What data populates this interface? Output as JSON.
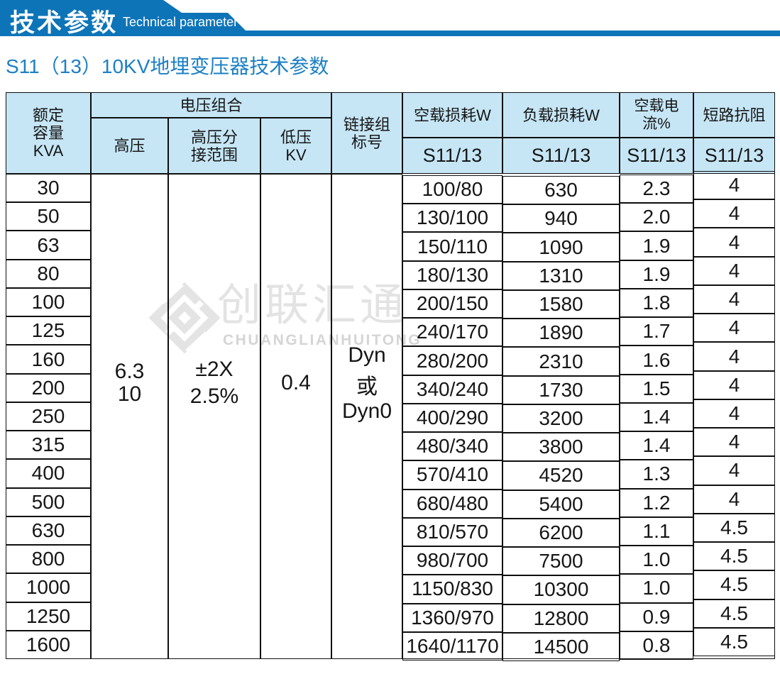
{
  "banner": {
    "title_cn": "技术参数",
    "title_en": "Technical parameter"
  },
  "subtitle": "S11（13）10KV地埋变压器技术参数",
  "watermark": {
    "logo": "diamond-logo",
    "cn": "创联汇通",
    "en": "CHUANGLIANHUITONG"
  },
  "colors": {
    "banner_blue": "#0d74b8",
    "subtitle_blue": "#1c80c4",
    "header_bg": "#c6e6f5",
    "border": "#0f0f0f",
    "watermark_gray": "#e3e3e3"
  },
  "table": {
    "headers": {
      "capacity_lines": [
        "额定",
        "容量",
        "KVA"
      ],
      "voltage_group": "电压组合",
      "hv": "高压",
      "hv_tap_lines": [
        "高压分",
        "接范围"
      ],
      "lv_lines": [
        "低压",
        "KV"
      ],
      "vector_lines": [
        "链接组",
        "标号"
      ],
      "no_load_loss": "空载损耗W",
      "load_loss": "负载损耗W",
      "no_load_current": "空载电流%",
      "impedance": "短路抗阻",
      "model_no_load_loss": "S11/13",
      "model_load_loss": "S11/13",
      "model_no_load_current": "S11/13",
      "model_impedance": "S11/13"
    },
    "merged": {
      "hv_lines": [
        "6.3",
        "10"
      ],
      "tap_lines": [
        "±2X",
        "2.5%"
      ],
      "lv": "0.4",
      "vector_lines": [
        "Dyn",
        "或",
        "Dyn0"
      ]
    },
    "rows": [
      {
        "capacity": "30",
        "no_load_loss": "100/80",
        "load_loss": "630",
        "no_load_current": "2.3",
        "impedance": "4"
      },
      {
        "capacity": "50",
        "no_load_loss": "130/100",
        "load_loss": "940",
        "no_load_current": "2.0",
        "impedance": "4"
      },
      {
        "capacity": "63",
        "no_load_loss": "150/110",
        "load_loss": "1090",
        "no_load_current": "1.9",
        "impedance": "4"
      },
      {
        "capacity": "80",
        "no_load_loss": "180/130",
        "load_loss": "1310",
        "no_load_current": "1.9",
        "impedance": "4"
      },
      {
        "capacity": "100",
        "no_load_loss": "200/150",
        "load_loss": "1580",
        "no_load_current": "1.8",
        "impedance": "4"
      },
      {
        "capacity": "125",
        "no_load_loss": "240/170",
        "load_loss": "1890",
        "no_load_current": "1.7",
        "impedance": "4"
      },
      {
        "capacity": "160",
        "no_load_loss": "280/200",
        "load_loss": "2310",
        "no_load_current": "1.6",
        "impedance": "4"
      },
      {
        "capacity": "200",
        "no_load_loss": "340/240",
        "load_loss": "1730",
        "no_load_current": "1.5",
        "impedance": "4"
      },
      {
        "capacity": "250",
        "no_load_loss": "400/290",
        "load_loss": "3200",
        "no_load_current": "1.4",
        "impedance": "4"
      },
      {
        "capacity": "315",
        "no_load_loss": "480/340",
        "load_loss": "3800",
        "no_load_current": "1.4",
        "impedance": "4"
      },
      {
        "capacity": "400",
        "no_load_loss": "570/410",
        "load_loss": "4520",
        "no_load_current": "1.3",
        "impedance": "4"
      },
      {
        "capacity": "500",
        "no_load_loss": "680/480",
        "load_loss": "5400",
        "no_load_current": "1.2",
        "impedance": "4"
      },
      {
        "capacity": "630",
        "no_load_loss": "810/570",
        "load_loss": "6200",
        "no_load_current": "1.1",
        "impedance": "4.5"
      },
      {
        "capacity": "800",
        "no_load_loss": "980/700",
        "load_loss": "7500",
        "no_load_current": "1.0",
        "impedance": "4.5"
      },
      {
        "capacity": "1000",
        "no_load_loss": "1150/830",
        "load_loss": "10300",
        "no_load_current": "1.0",
        "impedance": "4.5"
      },
      {
        "capacity": "1250",
        "no_load_loss": "1360/970",
        "load_loss": "12800",
        "no_load_current": "0.9",
        "impedance": "4.5"
      },
      {
        "capacity": "1600",
        "no_load_loss": "1640/1170",
        "load_loss": "14500",
        "no_load_current": "0.8",
        "impedance": "4.5"
      }
    ]
  }
}
